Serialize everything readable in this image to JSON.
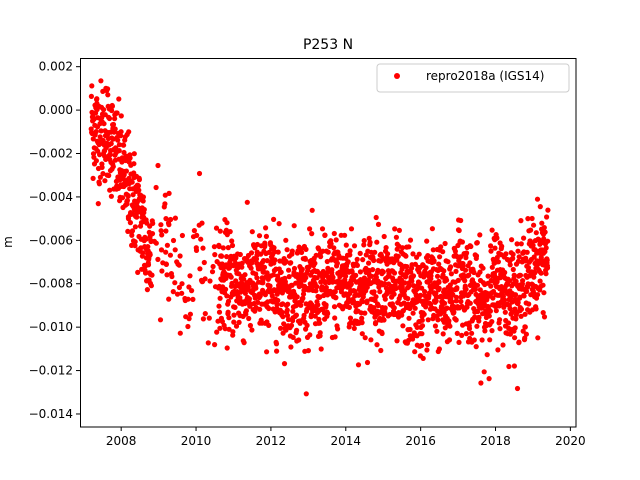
{
  "chart_data": {
    "type": "scatter",
    "title": "P253 N",
    "xlabel": "",
    "ylabel": "m",
    "xlim": [
      2006.9,
      2020.15
    ],
    "ylim": [
      -0.0146,
      0.0024
    ],
    "xticks": [
      2008,
      2010,
      2012,
      2014,
      2016,
      2018,
      2020
    ],
    "xtick_labels": [
      "2008",
      "2010",
      "2012",
      "2014",
      "2016",
      "2018",
      "2020"
    ],
    "yticks": [
      0.002,
      0.0,
      -0.002,
      -0.004,
      -0.006,
      -0.008,
      -0.01,
      -0.012,
      -0.014
    ],
    "ytick_labels": [
      "0.002",
      "0.000",
      "−0.002",
      "−0.004",
      "−0.006",
      "−0.008",
      "−0.010",
      "−0.012",
      "−0.014"
    ],
    "grid": false,
    "legend_position": "top-right",
    "series": [
      {
        "name": "repro2018a (IGS14)",
        "color": "#ff0000",
        "marker": "circle",
        "trend": [
          [
            2007.2,
            -0.0005
          ],
          [
            2007.4,
            -0.0012
          ],
          [
            2007.6,
            -0.0008
          ],
          [
            2007.8,
            -0.0018
          ],
          [
            2008.0,
            -0.0028
          ],
          [
            2008.2,
            -0.0036
          ],
          [
            2008.4,
            -0.0045
          ],
          [
            2008.6,
            -0.0056
          ],
          [
            2008.7,
            -0.0068
          ],
          [
            2009.1,
            -0.0053
          ],
          [
            2009.8,
            -0.009
          ],
          [
            2010.0,
            -0.006
          ],
          [
            2010.3,
            -0.0085
          ],
          [
            2010.7,
            -0.0078
          ],
          [
            2011.0,
            -0.008
          ],
          [
            2011.3,
            -0.0082
          ],
          [
            2011.6,
            -0.0081
          ],
          [
            2012.0,
            -0.0079
          ],
          [
            2012.4,
            -0.0083
          ],
          [
            2012.8,
            -0.0081
          ],
          [
            2013.2,
            -0.0085
          ],
          [
            2013.6,
            -0.008
          ],
          [
            2014.0,
            -0.0078
          ],
          [
            2014.4,
            -0.0084
          ],
          [
            2014.8,
            -0.0078
          ],
          [
            2015.2,
            -0.0082
          ],
          [
            2015.6,
            -0.0085
          ],
          [
            2016.0,
            -0.009
          ],
          [
            2016.3,
            -0.008
          ],
          [
            2016.7,
            -0.009
          ],
          [
            2017.0,
            -0.0075
          ],
          [
            2017.3,
            -0.0082
          ],
          [
            2017.7,
            -0.0092
          ],
          [
            2018.0,
            -0.0078
          ],
          [
            2018.4,
            -0.0085
          ],
          [
            2018.7,
            -0.0082
          ],
          [
            2019.0,
            -0.0072
          ],
          [
            2019.4,
            -0.0065
          ]
        ],
        "scatter_sd": 0.0012,
        "n_points": 2400
      }
    ]
  }
}
